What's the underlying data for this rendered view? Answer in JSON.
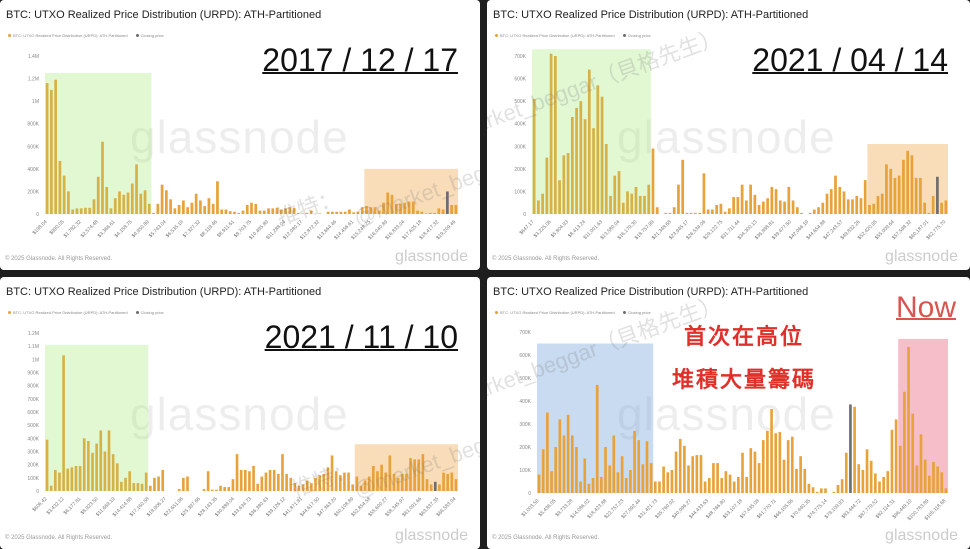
{
  "colors": {
    "bar": "#e8a23a",
    "bar_in_green": "#d6b246",
    "closing": "#6e6e6e",
    "green": "rgba(170,235,130,0.35)",
    "orange": "rgba(240,165,70,0.38)",
    "blue": "rgba(110,160,215,0.38)",
    "red": "rgba(232,110,135,0.45)",
    "annotation_red": "#e0302a"
  },
  "watermarks": {
    "handle": "@market_beggar（貝格先生）",
    "twitter": "推特："
  },
  "chart_data": [
    {
      "type": "bar",
      "title": "BTC: UTXO Realized Price Distribution (URPD): ATH-Partitioned",
      "legend": [
        "BTC: UTXO Realized Price Distribution (URPD): ATH-Partitioned",
        "Closing price"
      ],
      "legend_placement": "top-left",
      "date_label": "2017 / 12 / 17",
      "copyright": "© 2025 Glassnode. All Rights Reserved.",
      "logo": "glassnode",
      "unit": "K",
      "ylim": [
        0,
        1400
      ],
      "yticks": [
        "0",
        "200K",
        "400K",
        "600K",
        "800K",
        "1M",
        "1.2M",
        "1.4M"
      ],
      "xticks": [
        "$198.04",
        "$990.05",
        "$1,782.32",
        "$2,574.48",
        "$3,366.61",
        "$4,158.75",
        "$4,950.89",
        "$5,743.04",
        "$6,535.19",
        "$7,327.32",
        "$8,119.46",
        "$8,911.61",
        "$9,703.75",
        "$10,495.89",
        "$11,288.04",
        "$12,080.17",
        "$12,872.32",
        "$13,664.46",
        "$14,456.61",
        "$15,248.75",
        "$16,040.89",
        "$16,833.04",
        "$17,625.18",
        "$18,417.32",
        "$19,209.46"
      ],
      "values": [
        1160,
        1100,
        1190,
        470,
        340,
        200,
        40,
        50,
        50,
        55,
        55,
        130,
        330,
        640,
        240,
        50,
        140,
        200,
        170,
        190,
        270,
        440,
        180,
        210,
        90,
        10,
        90,
        260,
        210,
        130,
        50,
        80,
        120,
        60,
        100,
        180,
        120,
        70,
        140,
        90,
        290,
        40,
        40,
        25,
        20,
        10,
        30,
        80,
        100,
        90,
        30,
        30,
        50,
        50,
        55,
        40,
        50,
        60,
        55,
        10,
        5,
        10,
        30,
        0,
        5,
        0,
        20,
        20,
        20,
        20,
        20,
        40,
        15,
        20,
        60,
        70,
        60,
        60,
        30,
        100,
        190,
        170,
        90,
        90,
        100,
        110,
        110,
        30,
        20,
        5,
        10,
        10,
        50,
        40,
        200,
        80,
        80
      ],
      "closing_index": 94,
      "highlights": [
        {
          "from": 0,
          "to": 24,
          "color": "green",
          "top": 1250
        },
        {
          "from": 75,
          "to": 96,
          "color": "orange",
          "top": 400
        }
      ]
    },
    {
      "type": "bar",
      "title": "BTC: UTXO Realized Price Distribution (URPD): ATH-Partitioned",
      "legend": [
        "BTC: UTXO Realized Price Distribution (URPD): ATH-Partitioned",
        "Closing price"
      ],
      "legend_placement": "top-left",
      "date_label": "2021 / 04 / 14",
      "copyright": "© 2025 Glassnode. All Rights Reserved.",
      "logo": "glassnode",
      "unit": "K",
      "ylim": [
        0,
        700
      ],
      "yticks": [
        "0",
        "100K",
        "200K",
        "300K",
        "400K",
        "500K",
        "600K",
        "700K"
      ],
      "xticks": [
        "$647.17",
        "$3,225.06",
        "$5,804.93",
        "$8,413.24",
        "$11,001.63",
        "$13,580.04",
        "$16,179.30",
        "$18,757.99",
        "$21,348.68",
        "$23,945.17",
        "$26,534.06",
        "$29,122.75",
        "$31,711.44",
        "$34,300.13",
        "$36,888.81",
        "$39,477.50",
        "$42,066.19",
        "$44,654.88",
        "$47,243.57",
        "$49,832.26",
        "$52,420.95",
        "$55,009.64",
        "$57,598.32",
        "$60,187.01",
        "$62,775.70"
      ],
      "values": [
        510,
        60,
        90,
        250,
        710,
        700,
        150,
        260,
        270,
        430,
        470,
        500,
        420,
        640,
        380,
        570,
        520,
        310,
        80,
        170,
        190,
        50,
        100,
        90,
        120,
        80,
        80,
        130,
        290,
        30,
        0,
        5,
        5,
        30,
        130,
        240,
        5,
        5,
        5,
        5,
        180,
        20,
        20,
        40,
        45,
        10,
        25,
        75,
        75,
        130,
        60,
        130,
        85,
        40,
        55,
        70,
        120,
        110,
        60,
        55,
        120,
        60,
        30,
        5,
        0,
        5,
        20,
        30,
        50,
        90,
        110,
        170,
        120,
        100,
        65,
        65,
        80,
        70,
        150,
        40,
        45,
        80,
        90,
        220,
        200,
        160,
        170,
        240,
        280,
        260,
        160,
        160,
        50,
        5,
        80,
        165,
        50,
        60
      ],
      "closing_index": 95,
      "highlights": [
        {
          "from": 0,
          "to": 27,
          "color": "green",
          "top": 730
        },
        {
          "from": 79,
          "to": 97,
          "color": "orange",
          "top": 310
        }
      ]
    },
    {
      "type": "bar",
      "title": "BTC: UTXO Realized Price Distribution (URPD): ATH-Partitioned",
      "legend": [
        "BTC: UTXO Realized Price Distribution (URPD): ATH-Partitioned",
        "Closing price"
      ],
      "legend_placement": "top-left",
      "date_label": "2021 / 11 / 10",
      "copyright": "© 2025 Glassnode. All Rights Reserved.",
      "logo": "glassnode",
      "unit": "K",
      "ylim": [
        0,
        1200
      ],
      "yticks": [
        "0",
        "100K",
        "200K",
        "300K",
        "400K",
        "500K",
        "600K",
        "700K",
        "800K",
        "900K",
        "1M",
        "1.1M",
        "1.2M"
      ],
      "xticks": [
        "$606.42",
        "$3,432.12",
        "$6,177.81",
        "$8,923.50",
        "$11,669.19",
        "$14,414.88",
        "$17,160.58",
        "$19,906.27",
        "$22,651.96",
        "$25,397.66",
        "$28,143.35",
        "$30,889.04",
        "$33,634.73",
        "$36,380.43",
        "$39,126.12",
        "$41,871.81",
        "$44,617.50",
        "$47,363.20",
        "$50,108.89",
        "$52,854.58",
        "$55,600.27",
        "$58,345.97",
        "$61,091.66",
        "$63,837.35",
        "$66,583.04"
      ],
      "values": [
        390,
        40,
        160,
        140,
        1030,
        170,
        180,
        190,
        190,
        400,
        380,
        290,
        360,
        460,
        300,
        460,
        280,
        210,
        70,
        100,
        150,
        60,
        60,
        55,
        140,
        40,
        100,
        110,
        160,
        0,
        0,
        0,
        15,
        100,
        110,
        0,
        0,
        0,
        15,
        150,
        10,
        10,
        40,
        30,
        30,
        90,
        280,
        160,
        160,
        150,
        190,
        55,
        110,
        140,
        160,
        160,
        130,
        280,
        130,
        100,
        60,
        40,
        50,
        80,
        60,
        100,
        120,
        130,
        180,
        270,
        150,
        120,
        140,
        140,
        50,
        110,
        40,
        80,
        110,
        190,
        150,
        200,
        140,
        270,
        130,
        100,
        130,
        130,
        250,
        240,
        240,
        280,
        90,
        50,
        70,
        50,
        140,
        130,
        140,
        90
      ],
      "closing_index": 94,
      "highlights": [
        {
          "from": 0,
          "to": 24,
          "color": "green",
          "top": 1110
        },
        {
          "from": 75,
          "to": 99,
          "color": "orange",
          "top": 355
        }
      ]
    },
    {
      "type": "bar",
      "title": "BTC: UTXO Realized Price Distribution (URPD): ATH-Partitioned",
      "legend": [
        "BTC: UTXO Realized Price Distribution (URPD): ATH-Partitioned",
        "Closing price"
      ],
      "legend_placement": "top-left",
      "date_label": "Now",
      "annotations": [
        "首次在高位",
        "堆積大量籌碼"
      ],
      "copyright": "© 2025 Glassnode. All Rights Reserved.",
      "logo": "glassnode",
      "unit": "K",
      "ylim": [
        0,
        700
      ],
      "yticks": [
        "0",
        "100K",
        "200K",
        "300K",
        "400K",
        "500K",
        "600K",
        "700K"
      ],
      "xticks": [
        "$1,003.50",
        "$5,436.05",
        "$9,733.28",
        "$14,086.02",
        "$18,423.88",
        "$22,757.23",
        "$27,092.44",
        "$31,421.73",
        "$35,760.02",
        "$40,096.27",
        "$44,433.63",
        "$48,766.80",
        "$53,107.18",
        "$57,435.08",
        "$61,770.71",
        "$66,105.56",
        "$70,440.35",
        "$74,775.14",
        "$79,109.93",
        "$83,444.72",
        "$87,779.52",
        "$92,114.31",
        "$96,449.10",
        "$100,783.89",
        "$105,118.68"
      ],
      "values": [
        80,
        190,
        350,
        95,
        200,
        320,
        250,
        340,
        250,
        200,
        50,
        150,
        40,
        65,
        470,
        70,
        200,
        120,
        250,
        90,
        160,
        65,
        100,
        270,
        230,
        125,
        225,
        130,
        50,
        50,
        115,
        90,
        100,
        180,
        235,
        205,
        120,
        160,
        165,
        165,
        50,
        65,
        130,
        130,
        65,
        95,
        80,
        50,
        70,
        175,
        70,
        195,
        180,
        130,
        230,
        270,
        365,
        260,
        265,
        145,
        230,
        245,
        105,
        160,
        105,
        40,
        25,
        5,
        20,
        20,
        0,
        5,
        35,
        60,
        175,
        385,
        375,
        125,
        100,
        190,
        140,
        85,
        50,
        70,
        95,
        275,
        320,
        205,
        440,
        635,
        345,
        120,
        255,
        145,
        75,
        135,
        115,
        90,
        20
      ],
      "closing_index": 75,
      "highlights": [
        {
          "from": 0,
          "to": 27,
          "color": "blue",
          "top": 650
        },
        {
          "from": 87,
          "to": 98,
          "color": "red",
          "top": 670
        }
      ]
    }
  ]
}
